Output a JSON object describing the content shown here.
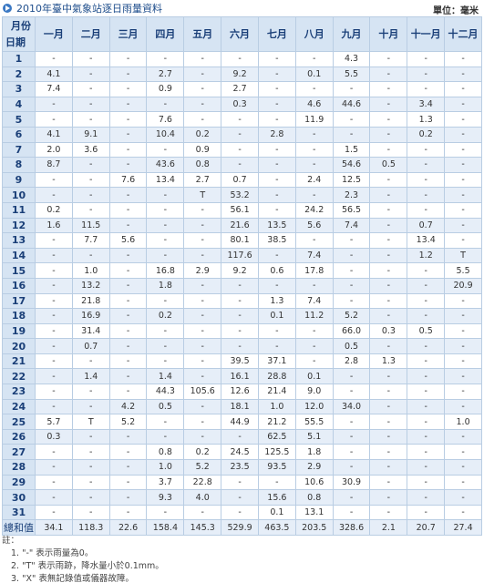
{
  "header": {
    "title": "2010年臺中氣象站逐日雨量資料",
    "unit": "單位：毫米"
  },
  "table": {
    "corner_top": "月份",
    "corner_bottom": "日期",
    "columns": [
      "一月",
      "二月",
      "三月",
      "四月",
      "五月",
      "六月",
      "七月",
      "八月",
      "九月",
      "十月",
      "十一月",
      "十二月"
    ],
    "rows": [
      [
        "1",
        "-",
        "-",
        "-",
        "-",
        "-",
        "-",
        "-",
        "-",
        "4.3",
        "-",
        "-",
        "-"
      ],
      [
        "2",
        "4.1",
        "-",
        "-",
        "2.7",
        "-",
        "9.2",
        "-",
        "0.1",
        "5.5",
        "-",
        "-",
        "-"
      ],
      [
        "3",
        "7.4",
        "-",
        "-",
        "0.9",
        "-",
        "2.7",
        "-",
        "-",
        "-",
        "-",
        "-",
        "-"
      ],
      [
        "4",
        "-",
        "-",
        "-",
        "-",
        "-",
        "0.3",
        "-",
        "4.6",
        "44.6",
        "-",
        "3.4",
        "-"
      ],
      [
        "5",
        "-",
        "-",
        "-",
        "7.6",
        "-",
        "-",
        "-",
        "11.9",
        "-",
        "-",
        "1.3",
        "-"
      ],
      [
        "6",
        "4.1",
        "9.1",
        "-",
        "10.4",
        "0.2",
        "-",
        "2.8",
        "-",
        "-",
        "-",
        "0.2",
        "-"
      ],
      [
        "7",
        "2.0",
        "3.6",
        "-",
        "-",
        "0.9",
        "-",
        "-",
        "-",
        "1.5",
        "-",
        "-",
        "-"
      ],
      [
        "8",
        "8.7",
        "-",
        "-",
        "43.6",
        "0.8",
        "-",
        "-",
        "-",
        "54.6",
        "0.5",
        "-",
        "-"
      ],
      [
        "9",
        "-",
        "-",
        "7.6",
        "13.4",
        "2.7",
        "0.7",
        "-",
        "2.4",
        "12.5",
        "-",
        "-",
        "-"
      ],
      [
        "10",
        "-",
        "-",
        "-",
        "-",
        "T",
        "53.2",
        "-",
        "-",
        "2.3",
        "-",
        "-",
        "-"
      ],
      [
        "11",
        "0.2",
        "-",
        "-",
        "-",
        "-",
        "56.1",
        "-",
        "24.2",
        "56.5",
        "-",
        "-",
        "-"
      ],
      [
        "12",
        "1.6",
        "11.5",
        "-",
        "-",
        "-",
        "21.6",
        "13.5",
        "5.6",
        "7.4",
        "-",
        "0.7",
        "-"
      ],
      [
        "13",
        "-",
        "7.7",
        "5.6",
        "-",
        "-",
        "80.1",
        "38.5",
        "-",
        "-",
        "-",
        "13.4",
        "-"
      ],
      [
        "14",
        "-",
        "-",
        "-",
        "-",
        "-",
        "117.6",
        "-",
        "7.4",
        "-",
        "-",
        "1.2",
        "T"
      ],
      [
        "15",
        "-",
        "1.0",
        "-",
        "16.8",
        "2.9",
        "9.2",
        "0.6",
        "17.8",
        "-",
        "-",
        "-",
        "5.5"
      ],
      [
        "16",
        "-",
        "13.2",
        "-",
        "1.8",
        "-",
        "-",
        "-",
        "-",
        "-",
        "-",
        "-",
        "20.9"
      ],
      [
        "17",
        "-",
        "21.8",
        "-",
        "-",
        "-",
        "-",
        "1.3",
        "7.4",
        "-",
        "-",
        "-",
        "-"
      ],
      [
        "18",
        "-",
        "16.9",
        "-",
        "0.2",
        "-",
        "-",
        "0.1",
        "11.2",
        "5.2",
        "-",
        "-",
        "-"
      ],
      [
        "19",
        "-",
        "31.4",
        "-",
        "-",
        "-",
        "-",
        "-",
        "-",
        "66.0",
        "0.3",
        "0.5",
        "-"
      ],
      [
        "20",
        "-",
        "0.7",
        "-",
        "-",
        "-",
        "-",
        "-",
        "-",
        "0.5",
        "-",
        "-",
        "-"
      ],
      [
        "21",
        "-",
        "-",
        "-",
        "-",
        "-",
        "39.5",
        "37.1",
        "-",
        "2.8",
        "1.3",
        "-",
        "-"
      ],
      [
        "22",
        "-",
        "1.4",
        "-",
        "1.4",
        "-",
        "16.1",
        "28.8",
        "0.1",
        "-",
        "-",
        "-",
        "-"
      ],
      [
        "23",
        "-",
        "-",
        "-",
        "44.3",
        "105.6",
        "12.6",
        "21.4",
        "9.0",
        "-",
        "-",
        "-",
        "-"
      ],
      [
        "24",
        "-",
        "-",
        "4.2",
        "0.5",
        "-",
        "18.1",
        "1.0",
        "12.0",
        "34.0",
        "-",
        "-",
        "-"
      ],
      [
        "25",
        "5.7",
        "T",
        "5.2",
        "-",
        "-",
        "44.9",
        "21.2",
        "55.5",
        "-",
        "-",
        "-",
        "1.0"
      ],
      [
        "26",
        "0.3",
        "-",
        "-",
        "-",
        "-",
        "-",
        "62.5",
        "5.1",
        "-",
        "-",
        "-",
        "-"
      ],
      [
        "27",
        "-",
        "-",
        "-",
        "0.8",
        "0.2",
        "24.5",
        "125.5",
        "1.8",
        "-",
        "-",
        "-",
        "-"
      ],
      [
        "28",
        "-",
        "-",
        "-",
        "1.0",
        "5.2",
        "23.5",
        "93.5",
        "2.9",
        "-",
        "-",
        "-",
        "-"
      ],
      [
        "29",
        "-",
        "-",
        "-",
        "3.7",
        "22.8",
        "-",
        "-",
        "10.6",
        "30.9",
        "-",
        "-",
        "-"
      ],
      [
        "30",
        "-",
        "-",
        "-",
        "9.3",
        "4.0",
        "-",
        "15.6",
        "0.8",
        "-",
        "-",
        "-",
        "-"
      ],
      [
        "31",
        "-",
        "-",
        "-",
        "-",
        "-",
        "-",
        "0.1",
        "13.1",
        "-",
        "-",
        "-",
        "-"
      ]
    ],
    "total": [
      "總和值",
      "34.1",
      "118.3",
      "22.6",
      "158.4",
      "145.3",
      "529.9",
      "463.5",
      "203.5",
      "328.6",
      "2.1",
      "20.7",
      "27.4"
    ]
  },
  "notes": {
    "heading": "註：",
    "items": [
      {
        "num": "1.",
        "text": "\"-\" 表示雨量為0。"
      },
      {
        "num": "2.",
        "text": "\"T\" 表示雨跡，降水量小於0.1mm。"
      },
      {
        "num": "3.",
        "text": "\"X\" 表無記錄值或儀器故障。"
      }
    ]
  }
}
